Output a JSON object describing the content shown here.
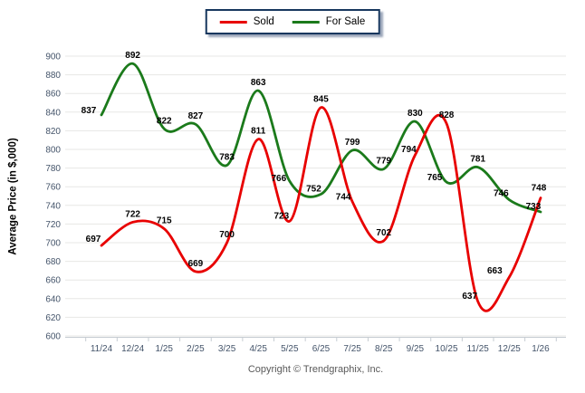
{
  "legend": {
    "items": [
      {
        "label": "Sold",
        "color": "#e80000"
      },
      {
        "label": "For Sale",
        "color": "#1b7a1b"
      }
    ]
  },
  "chart_data": {
    "type": "line",
    "smooth": true,
    "categories": [
      "11/24",
      "12/24",
      "1/25",
      "2/25",
      "3/25",
      "4/25",
      "5/25",
      "6/25",
      "7/25",
      "8/25",
      "9/25",
      "10/25",
      "11/25",
      "12/25",
      "1/26"
    ],
    "series": [
      {
        "name": "Sold",
        "color": "#e80000",
        "values": [
          697,
          722,
          715,
          669,
          700,
          811,
          723,
          845,
          744,
          702,
          794,
          828,
          637,
          663,
          748
        ]
      },
      {
        "name": "For Sale",
        "color": "#1b7a1b",
        "values": [
          837,
          892,
          822,
          827,
          783,
          863,
          766,
          752,
          799,
          779,
          830,
          765,
          781,
          746,
          733
        ]
      }
    ],
    "xlabel": "",
    "ylabel": "Average Price (in $,000)",
    "ylim": [
      600,
      900
    ],
    "ytick_step": 20,
    "grid": true,
    "legend_position": "top-center"
  },
  "footer": {
    "copyright": "Copyright © Trendgraphix, Inc."
  },
  "colors": {
    "grid": "#e7e7e5",
    "axis": "#c6ccd2",
    "tick_label": "#44546a",
    "data_label": "#000000"
  }
}
